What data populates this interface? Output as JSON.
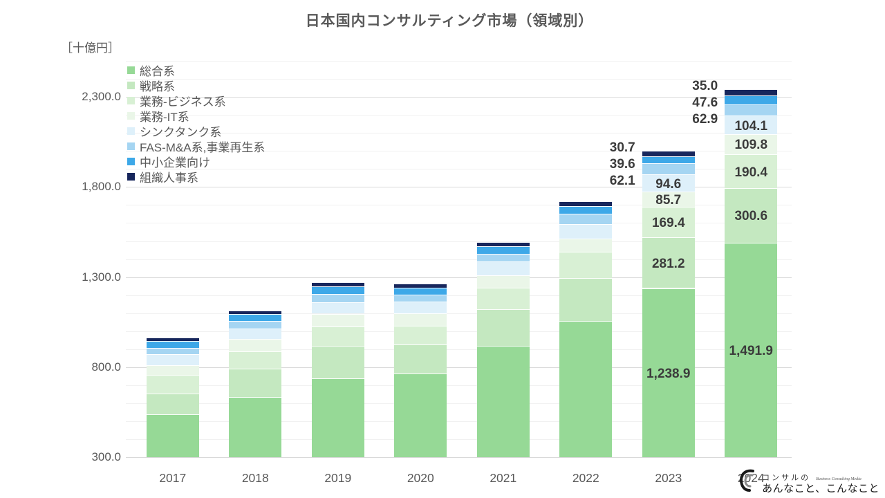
{
  "title": "日本国内コンサルティング市場（領域別）",
  "y_axis": {
    "unit_label": "［十億円］",
    "major_tick_labels": [
      "300.0",
      "800.0",
      "1,300.0",
      "1,800.0",
      "2,300.0"
    ]
  },
  "footer_logo": {
    "icon": "paperclip-icon",
    "brand_top": "コンサルの",
    "tagline": "Business Consulting Media",
    "brand_bottom": "あんなこと、こんなこと"
  },
  "chart_data": {
    "type": "bar",
    "stacked": true,
    "title": "日本国内コンサルティング市場（領域別）",
    "ylabel": "［十億円］",
    "ylim": [
      300,
      2500
    ],
    "y_major_unit": 500,
    "y_minor_unit": 100,
    "grid": true,
    "legend_position": "top-left-vertical",
    "categories": [
      "2017",
      "2018",
      "2019",
      "2020",
      "2021",
      "2022",
      "2023",
      "2024"
    ],
    "series": [
      {
        "name": "総合系",
        "color": "#96D996",
        "values": [
          537.9,
          633.4,
          737.8,
          765.6,
          919.6,
          1058.3,
          1238.9,
          1491.9
        ]
      },
      {
        "name": "戦略系",
        "color": "#C4E8C0",
        "values": [
          114.5,
          159.0,
          180.7,
          161.5,
          201.0,
          237.9,
          281.2,
          300.6
        ]
      },
      {
        "name": "業務-ビジネス系",
        "color": "#D8F0D4",
        "values": [
          105.7,
          96.7,
          105.7,
          102.0,
          120.9,
          143.9,
          169.4,
          190.4
        ]
      },
      {
        "name": "業務-IT系",
        "color": "#EAF6E8",
        "values": [
          53.4,
          66.0,
          72.5,
          70.0,
          70.0,
          73.8,
          85.7,
          109.8
        ]
      },
      {
        "name": "シンクタンク系",
        "color": "#DEF0FA",
        "values": [
          61.0,
          60.0,
          64.0,
          64.0,
          76.0,
          81.4,
          94.6,
          104.1
        ]
      },
      {
        "name": "FAS-M&A系,事業再生系",
        "color": "#A5D5F2",
        "values": [
          35.6,
          42.0,
          46.0,
          38.0,
          42.0,
          54.7,
          62.1,
          62.9
        ]
      },
      {
        "name": "中小企業向け",
        "color": "#3DA8E8",
        "values": [
          38.0,
          38.0,
          41.0,
          41.0,
          43.0,
          44.6,
          39.6,
          47.6
        ]
      },
      {
        "name": "組織人事系",
        "color": "#17265C",
        "values": [
          18.0,
          18.0,
          23.0,
          23.0,
          23.0,
          28.0,
          30.7,
          35.0
        ]
      }
    ],
    "data_labels": {
      "2023": [
        "1,238.9",
        "281.2",
        "169.4",
        "85.7",
        "94.6",
        "62.1",
        "39.6",
        "30.7"
      ],
      "2024": [
        "1,491.9",
        "300.6",
        "190.4",
        "109.8",
        "104.1",
        "62.9",
        "47.6",
        "35.0"
      ]
    }
  }
}
